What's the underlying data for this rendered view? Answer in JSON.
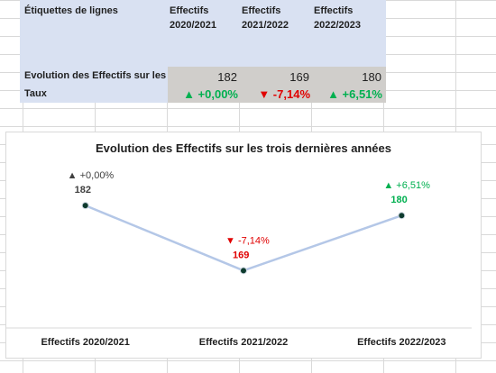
{
  "table": {
    "row_labels_header": "Étiquettes de lignes",
    "columns": [
      {
        "line1": "Effectifs",
        "line2": "2020/2021"
      },
      {
        "line1": "Effectifs",
        "line2": "2021/2022"
      },
      {
        "line1": "Effectifs",
        "line2": "2022/2023"
      }
    ],
    "row1": {
      "label": "Evolution des Effectifs sur les trois dernières années",
      "values": [
        "182",
        "169",
        "180"
      ]
    },
    "row2": {
      "label": "Taux",
      "values": [
        "▲ +0,00%",
        "▼ -7,14%",
        "▲ +6,51%"
      ]
    }
  },
  "colors": {
    "up": "#00b050",
    "down": "#e00000",
    "line": "#b4c7e7",
    "marker": "#0e3b2e"
  },
  "chart_data": {
    "type": "line",
    "title": "Evolution des Effectifs sur les trois dernières années",
    "categories": [
      "Effectifs 2020/2021",
      "Effectifs 2021/2022",
      "Effectifs 2022/2023"
    ],
    "values": [
      182,
      169,
      180
    ],
    "data_labels": [
      {
        "rate": "▲ +0,00%",
        "value": "182",
        "color": "#404040"
      },
      {
        "rate": "▼ -7,14%",
        "value": "169",
        "color": "#e00000"
      },
      {
        "rate": "▲ +6,51%",
        "value": "180",
        "color": "#00b050"
      }
    ],
    "ylim": [
      166,
      184
    ],
    "grid": false,
    "legend": "none"
  }
}
